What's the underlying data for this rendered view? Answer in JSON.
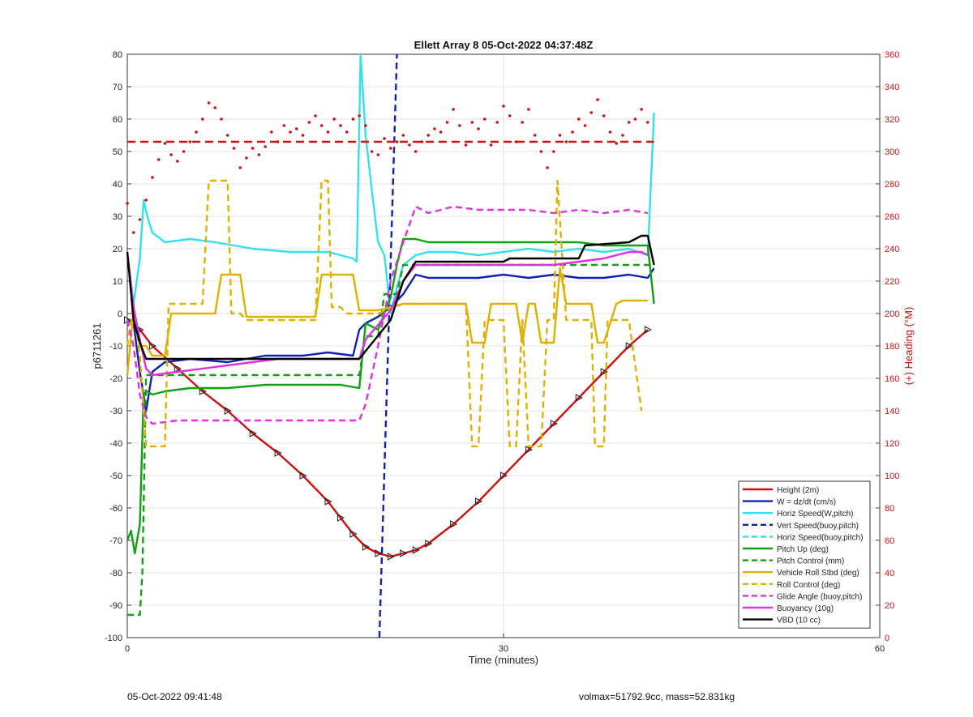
{
  "chart_data": {
    "type": "line",
    "title": "Ellett Array 8 05-Oct-2022 04:37:48Z",
    "xlabel": "Time (minutes)",
    "ylabel": "p6711261",
    "y2label": "(+) Heading (°M)",
    "xlim": [
      0,
      60
    ],
    "ylim": [
      -100,
      80
    ],
    "y2lim": [
      0,
      360
    ],
    "xticks": [
      0,
      30,
      60
    ],
    "yticks": [
      -100,
      -90,
      -80,
      -70,
      -60,
      -50,
      -40,
      -30,
      -20,
      -10,
      0,
      10,
      20,
      30,
      40,
      50,
      60,
      70,
      80
    ],
    "y2ticks": [
      0,
      20,
      40,
      60,
      80,
      100,
      120,
      140,
      160,
      180,
      200,
      220,
      240,
      260,
      280,
      300,
      320,
      340,
      360
    ],
    "grid": true,
    "legend_position": "bottom-right",
    "series": [
      {
        "name": "Height (2m)",
        "color": "#cc1111",
        "style": "solid",
        "markers": "triangle",
        "x": [
          0,
          1,
          2,
          4,
          6,
          8,
          10,
          12,
          14,
          16,
          17,
          18,
          19,
          20,
          21,
          22,
          23,
          24,
          26,
          28,
          30,
          32,
          34,
          36,
          38,
          40,
          41.5
        ],
        "y": [
          -2,
          -5,
          -10,
          -17,
          -24,
          -30,
          -37,
          -43,
          -50,
          -58,
          -63,
          -68,
          -72,
          -74,
          -75,
          -74,
          -73,
          -71,
          -65,
          -58,
          -50,
          -42,
          -34,
          -26,
          -18,
          -10,
          -5
        ]
      },
      {
        "name": "W = dz/dt (cm/s)",
        "color": "#1020b0",
        "style": "solid",
        "x": [
          0,
          0.5,
          1,
          1.5,
          2,
          3,
          5,
          8,
          11,
          14,
          16,
          18,
          18.5,
          19,
          20,
          21,
          22,
          22.5,
          23,
          24,
          26,
          28,
          30,
          32,
          34,
          36,
          38,
          40,
          41.5,
          42
        ],
        "y": [
          -2,
          -3,
          -18,
          -30,
          -18,
          -15,
          -14,
          -15,
          -13,
          -13,
          -12,
          -13,
          -5,
          -3,
          -1,
          2,
          6,
          9,
          12,
          11,
          11,
          11,
          12,
          11,
          12,
          11,
          11,
          12,
          11,
          14
        ]
      },
      {
        "name": "Horiz Speed(W,pitch)",
        "color": "#33e0f0",
        "style": "solid",
        "x": [
          0,
          0.5,
          1,
          1.3,
          1.6,
          2,
          3,
          5,
          7,
          10,
          13,
          16,
          18,
          18.3,
          18.6,
          19,
          19.5,
          20,
          20.5,
          21,
          21.5,
          22,
          23,
          24,
          26,
          28,
          30,
          32,
          34,
          36,
          38,
          40,
          41.5,
          42
        ],
        "y": [
          19,
          3,
          17,
          35,
          30,
          25,
          22,
          23,
          22,
          20,
          19,
          19,
          17,
          16,
          80,
          55,
          38,
          22,
          18,
          0,
          8,
          15,
          18,
          19,
          19,
          18,
          19,
          20,
          19,
          20,
          19,
          20,
          18,
          62
        ]
      },
      {
        "name": "Vert Speed(buoy,pitch)",
        "color": "#1020b0",
        "style": "dashed",
        "x": [
          20.1,
          21.5
        ],
        "y": [
          -100,
          80
        ]
      },
      {
        "name": "Horiz Speed(buoy,pitch)",
        "color": "#33e0f0",
        "style": "dashed",
        "x": [],
        "y": []
      },
      {
        "name": "Pitch Up (deg)",
        "color": "#10a010",
        "style": "solid",
        "x": [
          0,
          0.3,
          0.6,
          1,
          1.3,
          1.6,
          2,
          3,
          5,
          8,
          11,
          14,
          17,
          18.5,
          19,
          20,
          21,
          21.5,
          22,
          23,
          24,
          26,
          28,
          30,
          32,
          34,
          36,
          38,
          40,
          41.5,
          42
        ],
        "y": [
          -70,
          -67,
          -74,
          -65,
          -25,
          -24,
          -25,
          -24,
          -23,
          -23,
          -22,
          -22,
          -22,
          -23,
          -3,
          -5,
          5,
          15,
          23,
          23,
          22,
          22,
          22,
          22,
          22,
          22,
          22,
          21,
          21,
          21,
          3
        ]
      },
      {
        "name": "Pitch Control (mm)",
        "color": "#10a010",
        "style": "dashed",
        "x": [
          0,
          1,
          1.2,
          1.5,
          2,
          18.5,
          19,
          20,
          20.5,
          21.5,
          22,
          41,
          42
        ],
        "y": [
          -93,
          -93,
          -80,
          -19,
          -19,
          -19,
          -7,
          -7,
          6,
          6,
          15,
          15,
          15
        ]
      },
      {
        "name": "Vehicle Roll Stbd (deg)",
        "color": "#e0b000",
        "style": "solid",
        "x": [
          0,
          0.5,
          1,
          1.5,
          2,
          3,
          3.5,
          4,
          7,
          7.5,
          9,
          9.5,
          13,
          15,
          15.5,
          18,
          18.5,
          20,
          22,
          24,
          26,
          27,
          27.5,
          28.5,
          29,
          31,
          31.5,
          32,
          32.5,
          33,
          34,
          34.5,
          35,
          37,
          37.5,
          38,
          39,
          39.5,
          41.5
        ],
        "y": [
          -19,
          1,
          -10,
          -10,
          -13,
          -13,
          0,
          0,
          0,
          12,
          12,
          -1,
          -1,
          -1,
          12,
          12,
          1,
          1,
          3,
          3,
          3,
          3,
          -9,
          -9,
          3,
          3,
          -9,
          3,
          3,
          -9,
          -9,
          14,
          3,
          3,
          -9,
          -9,
          3,
          4,
          4
        ]
      },
      {
        "name": "Roll Control (deg)",
        "color": "#e0b000",
        "style": "dashed",
        "x": [
          0,
          0.5,
          1,
          1.5,
          2,
          3,
          3.3,
          6,
          6.5,
          8,
          8.3,
          9,
          9.5,
          13,
          14,
          15,
          15.5,
          16,
          16.3,
          17,
          17.5,
          18,
          18.5,
          20,
          22,
          24,
          26,
          27,
          27.5,
          28,
          28.5,
          29,
          30,
          30.5,
          31,
          31.5,
          32,
          33,
          33.5,
          34,
          34.3,
          35,
          37,
          37.3,
          38,
          38.3,
          39,
          40,
          41
        ],
        "y": [
          -10,
          3,
          -13,
          -41,
          -41,
          -41,
          3,
          3,
          41,
          41,
          0,
          0,
          -2,
          -2,
          -2,
          -2,
          41,
          41,
          2,
          2,
          0,
          0,
          0,
          0,
          3,
          3,
          3,
          3,
          -41,
          -41,
          -2,
          -2,
          -2,
          -41,
          -41,
          -2,
          -41,
          -41,
          -2,
          -2,
          41,
          -2,
          -2,
          -41,
          -41,
          -2,
          -2,
          -2,
          -30
        ]
      },
      {
        "name": "Glide Angle (buoy,pitch)",
        "color": "#e030e0",
        "style": "dashed",
        "x": [
          0,
          0.5,
          1,
          1.5,
          2,
          4,
          7,
          10,
          13,
          16,
          18.5,
          19,
          20,
          21,
          22,
          23,
          24,
          26,
          28,
          30,
          32,
          34,
          36,
          38,
          40,
          41.5
        ],
        "y": [
          -2,
          -10,
          -25,
          -32,
          -34,
          -33,
          -33,
          -33,
          -33,
          -33,
          -33,
          -28,
          -10,
          10,
          22,
          33,
          31,
          33,
          32,
          32,
          32,
          31,
          32,
          31,
          32,
          31
        ]
      },
      {
        "name": "Buoyancy (10g)",
        "color": "#e030e0",
        "style": "solid",
        "x": [
          0,
          0.5,
          1,
          1.5,
          2,
          4,
          8,
          12,
          16,
          18.5,
          19,
          21,
          22,
          23,
          30,
          34,
          38,
          40,
          41,
          41.5
        ],
        "y": [
          19,
          2,
          -8,
          -17,
          -19,
          -18,
          -16,
          -14,
          -14,
          -14,
          -8,
          1,
          10,
          15,
          15,
          15,
          17,
          19,
          19,
          18
        ]
      },
      {
        "name": "VBD (10 cc)",
        "color": "#000000",
        "style": "solid",
        "x": [
          0,
          0.5,
          1,
          1.5,
          2,
          18.5,
          21,
          22,
          23,
          25,
          28,
          30,
          30.5,
          36,
          36.5,
          40,
          41,
          41.5,
          42
        ],
        "y": [
          19,
          -2,
          -9,
          -14,
          -14,
          -14,
          -2,
          10,
          16,
          16,
          16,
          16,
          17,
          17,
          21,
          22,
          24,
          24,
          15
        ]
      }
    ],
    "heading": {
      "color": "#cc1111",
      "reference_value": 306,
      "x": [
        0,
        0.5,
        1,
        1.5,
        2,
        2.5,
        3,
        3.5,
        4,
        4.5,
        5,
        5.5,
        6,
        6.5,
        7,
        7.5,
        8,
        8.5,
        9,
        9.5,
        10,
        10.5,
        11,
        11.5,
        12,
        12.5,
        13,
        13.5,
        14,
        14.5,
        15,
        15.5,
        16,
        16.5,
        17,
        17.5,
        18,
        18.5,
        19,
        19.5,
        20,
        20.5,
        21,
        21.5,
        22,
        22.5,
        23,
        23.5,
        24,
        24.5,
        25,
        25.5,
        26,
        26.5,
        27,
        27.5,
        28,
        28.5,
        29,
        29.5,
        30,
        30.5,
        31,
        31.5,
        32,
        32.5,
        33,
        33.5,
        34,
        34.5,
        35,
        35.5,
        36,
        36.5,
        37,
        37.5,
        38,
        38.5,
        39,
        39.5,
        40,
        40.5,
        41,
        41.5
      ],
      "y": [
        268,
        250,
        258,
        270,
        284,
        295,
        305,
        298,
        294,
        300,
        306,
        312,
        320,
        330,
        327,
        320,
        310,
        302,
        290,
        296,
        302,
        298,
        303,
        312,
        306,
        316,
        312,
        314,
        310,
        318,
        322,
        316,
        312,
        320,
        316,
        312,
        320,
        322,
        316,
        300,
        298,
        308,
        302,
        306,
        310,
        304,
        300,
        306,
        310,
        314,
        312,
        318,
        326,
        316,
        304,
        318,
        314,
        320,
        304,
        318,
        328,
        322,
        306,
        318,
        326,
        310,
        300,
        290,
        300,
        310,
        306,
        312,
        320,
        316,
        324,
        332,
        322,
        312,
        305,
        310,
        318,
        320,
        326,
        318
      ]
    }
  },
  "footer": {
    "timestamp": "05-Oct-2022 09:41:48",
    "summary": "volmax=51792.9cc, mass=52.831kg"
  }
}
